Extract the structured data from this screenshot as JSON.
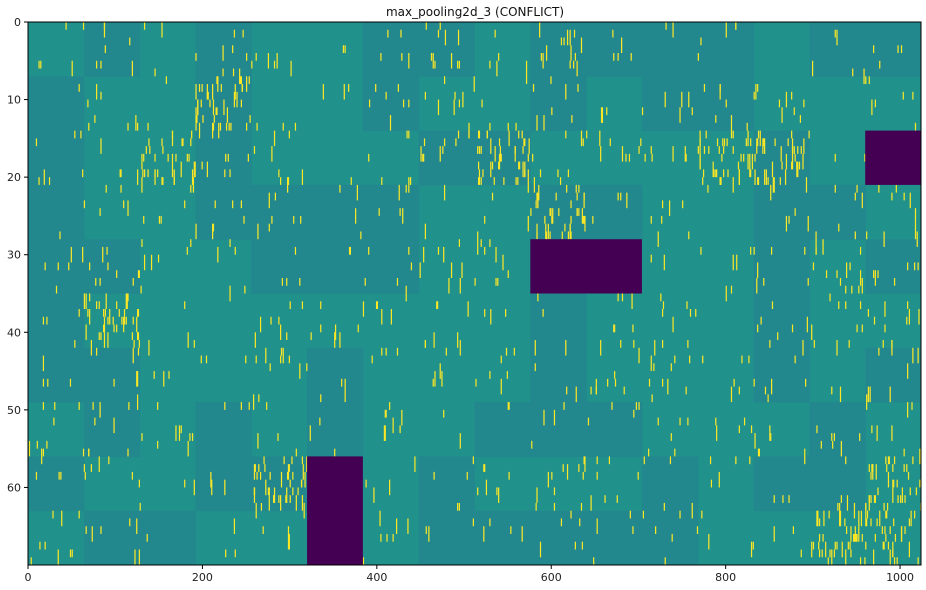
{
  "chart_data": {
    "type": "heatmap",
    "title": "max_pooling2d_3 (CONFLICT)",
    "xlabel": "",
    "ylabel": "",
    "xlim": [
      0,
      1024
    ],
    "ylim": [
      70,
      0
    ],
    "x_ticks": [
      0,
      200,
      400,
      600,
      800,
      1000
    ],
    "y_ticks": [
      0,
      10,
      20,
      30,
      40,
      50,
      60
    ],
    "grid": false,
    "colormap": "viridis",
    "colors": {
      "background": "#21918c",
      "block_variant": "#23888e",
      "activation_high": "#fde725",
      "activation_low": "#440154"
    },
    "block_size": {
      "columns": 64,
      "rows": 7
    },
    "dead_blocks": [
      {
        "x0": 960,
        "x1": 1024,
        "y0": 14,
        "y1": 21
      },
      {
        "x0": 576,
        "x1": 704,
        "y0": 28,
        "y1": 35
      },
      {
        "x0": 320,
        "x1": 384,
        "y0": 56,
        "y1": 70
      }
    ],
    "active_regions": [
      {
        "x0": 128,
        "x1": 192,
        "y0": 14,
        "y1": 21
      },
      {
        "x0": 192,
        "x1": 256,
        "y0": 7,
        "y1": 14
      },
      {
        "x0": 64,
        "x1": 128,
        "y0": 35,
        "y1": 42
      },
      {
        "x0": 512,
        "x1": 576,
        "y0": 14,
        "y1": 21
      },
      {
        "x0": 576,
        "x1": 640,
        "y0": 21,
        "y1": 28
      },
      {
        "x0": 768,
        "x1": 832,
        "y0": 14,
        "y1": 21
      },
      {
        "x0": 832,
        "x1": 896,
        "y0": 14,
        "y1": 21
      },
      {
        "x0": 960,
        "x1": 1024,
        "y0": 56,
        "y1": 70
      },
      {
        "x0": 256,
        "x1": 320,
        "y0": 56,
        "y1": 63
      },
      {
        "x0": 896,
        "x1": 960,
        "y0": 63,
        "y1": 70
      }
    ]
  }
}
